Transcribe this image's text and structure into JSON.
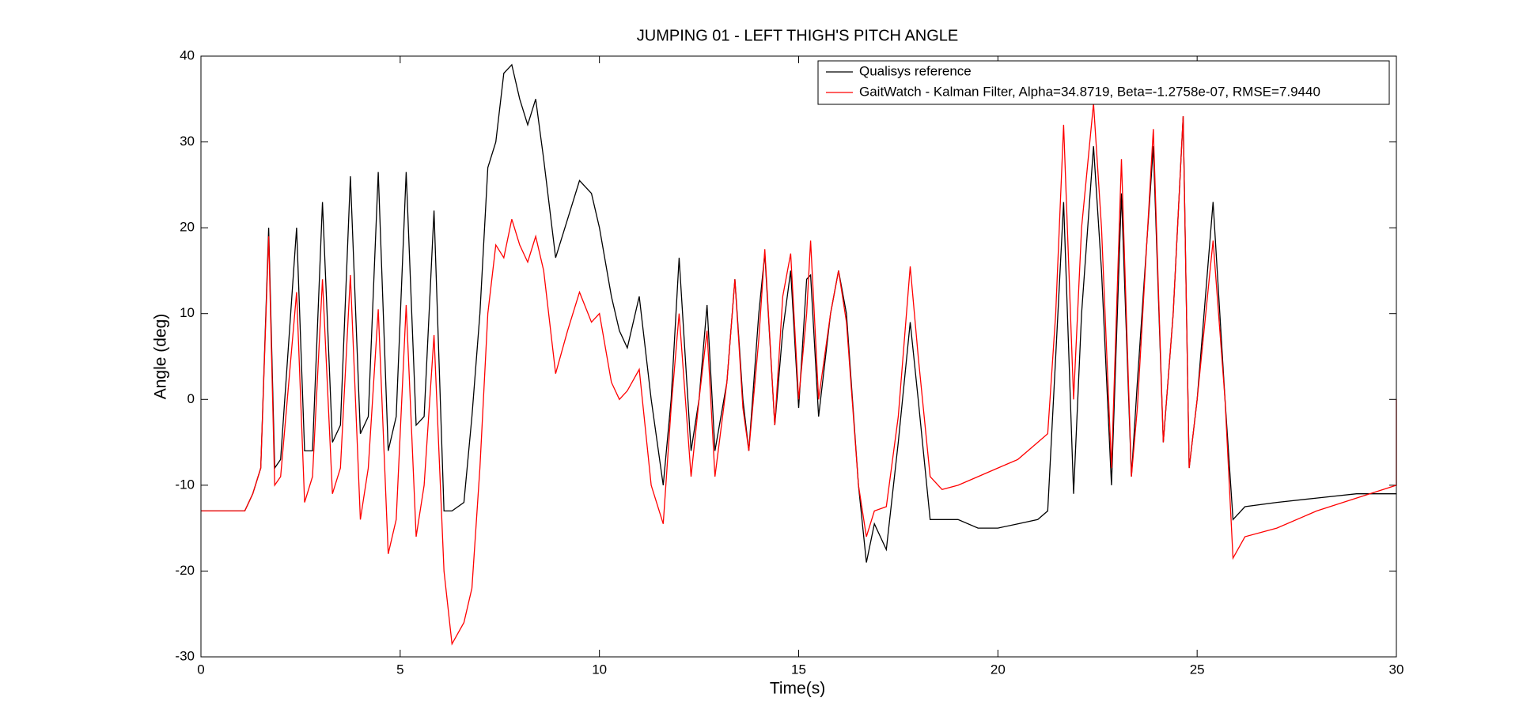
{
  "chart_data": {
    "type": "line",
    "title": "JUMPING 01 - LEFT THIGH'S PITCH ANGLE",
    "x_label": "Time(s)",
    "y_label": "Angle (deg)",
    "x": [
      0,
      1.1,
      1.3,
      1.5,
      1.7,
      1.85,
      2.0,
      2.4,
      2.6,
      2.8,
      3.05,
      3.3,
      3.5,
      3.75,
      4.0,
      4.2,
      4.45,
      4.7,
      4.9,
      5.15,
      5.4,
      5.6,
      5.85,
      6.1,
      6.3,
      6.6,
      6.8,
      7.0,
      7.2,
      7.4,
      7.6,
      7.8,
      8.0,
      8.2,
      8.4,
      8.6,
      8.9,
      9.2,
      9.5,
      9.8,
      10.0,
      10.3,
      10.5,
      10.7,
      11.0,
      11.3,
      11.6,
      11.8,
      12.0,
      12.3,
      12.5,
      12.7,
      12.9,
      13.2,
      13.4,
      13.6,
      13.75,
      14.0,
      14.15,
      14.4,
      14.6,
      14.8,
      15.0,
      15.2,
      15.3,
      15.5,
      15.8,
      16.0,
      16.2,
      16.5,
      16.7,
      16.9,
      17.2,
      17.5,
      17.8,
      18.0,
      18.3,
      18.6,
      19.0,
      19.5,
      20.0,
      20.5,
      21.0,
      21.25,
      21.45,
      21.65,
      21.9,
      22.1,
      22.4,
      22.6,
      22.85,
      23.1,
      23.35,
      23.5,
      23.9,
      24.15,
      24.4,
      24.65,
      24.8,
      25.0,
      25.4,
      25.7,
      25.9,
      26.2,
      27.0,
      28.0,
      29.0,
      30.0,
      30.0
    ],
    "series": [
      {
        "name": "Qualisys reference",
        "color": "#000000",
        "values": [
          -13,
          -13,
          -11,
          -8,
          20,
          -8,
          -7,
          20,
          -6,
          -6,
          23,
          -5,
          -3,
          26,
          -4,
          -2,
          26.5,
          -6,
          -2,
          26.5,
          -3,
          -2,
          22,
          -13,
          -13,
          -12,
          -2,
          10,
          27,
          30,
          38,
          39,
          35,
          32,
          35,
          28,
          16.5,
          21,
          25.5,
          24,
          20,
          12,
          8,
          6,
          12,
          0,
          -10,
          0,
          16.5,
          -6,
          0,
          11,
          -6,
          2,
          14,
          0,
          -6,
          10,
          17,
          -3,
          8,
          15,
          -1,
          14,
          14.5,
          -2,
          10,
          15,
          10,
          -10,
          -19,
          -14.5,
          -17.5,
          -5,
          9,
          0,
          -14,
          -14,
          -14,
          -15,
          -15,
          -14.5,
          -14,
          -13,
          5,
          23,
          -11,
          10,
          29.5,
          15,
          -10,
          24,
          -9,
          2,
          29.5,
          -5,
          10,
          33,
          -8,
          0,
          23,
          0,
          -14,
          -12.5,
          -12,
          -11.5,
          -11,
          -11,
          null
        ]
      },
      {
        "name": "GaitWatch - Kalman Filter, Alpha=34.8719, Beta=-1.2758e-07, RMSE=7.9440",
        "color": "#ff0000",
        "values": [
          -13,
          -13,
          -11,
          -8,
          19,
          -10,
          -9,
          12.5,
          -12,
          -9,
          14,
          -11,
          -8,
          14.5,
          -14,
          -8,
          10.5,
          -18,
          -14,
          11,
          -16,
          -10,
          7.5,
          -20,
          -28.5,
          -26,
          -22,
          -8,
          10,
          18,
          16.5,
          21,
          18,
          16,
          19,
          15,
          3,
          8,
          12.5,
          9,
          10,
          2,
          0,
          1,
          3.5,
          -10,
          -14.5,
          -1,
          10,
          -9,
          0,
          8,
          -9,
          2,
          14,
          -1,
          -6,
          7,
          17.5,
          -3,
          12,
          17,
          0,
          10,
          18.5,
          0,
          10,
          15,
          9,
          -10,
          -16,
          -13,
          -12.5,
          -2,
          15.5,
          5,
          -9,
          -10.5,
          -10,
          -9,
          -8,
          -7,
          -5,
          -4,
          10,
          32,
          0,
          20,
          34.5,
          20,
          -8,
          28,
          -9,
          -1,
          31.5,
          -5,
          10,
          33,
          -8,
          0,
          18.5,
          0,
          -18.5,
          -16,
          -15,
          -13,
          -11.5,
          -10,
          0
        ]
      }
    ],
    "xlim": [
      0,
      30
    ],
    "ylim": [
      -30,
      40
    ],
    "xticks": [
      0,
      5,
      10,
      15,
      20,
      25,
      30
    ],
    "yticks": [
      -30,
      -20,
      -10,
      0,
      10,
      20,
      30,
      40
    ],
    "grid": false,
    "legend": "northeast"
  }
}
